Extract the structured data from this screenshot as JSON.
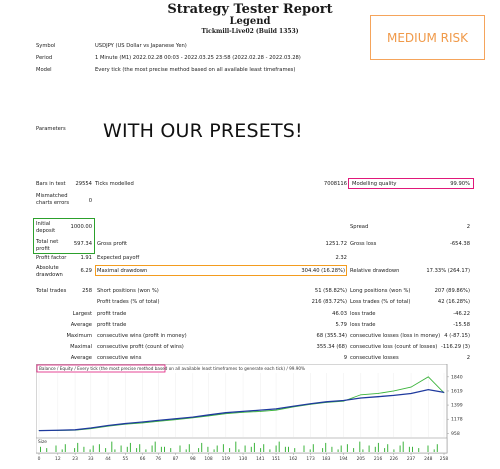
{
  "header": {
    "title": "Strategy Tester Report",
    "subtitle": "Legend",
    "server": "Tickmill-Live02 (Build 1353)"
  },
  "risk_label": "MEDIUM RISK",
  "presets_label": "WITH OUR PRESETS!",
  "info": {
    "symbol_label": "Symbol",
    "symbol": "USDJPY (US Dollar vs Japanese Yen)",
    "period_label": "Period",
    "period": "1 Minute (M1) 2022.02.28 00:03 - 2022.03.25 23:58 (2022.02.28 - 2022.03.28)",
    "model_label": "Model",
    "model": "Every tick (the most precise method based on all available least timeframes)",
    "parameters_label": "Parameters"
  },
  "stats": {
    "bars_label": "Bars in test",
    "bars": "29554",
    "ticks_label": "Ticks modelled",
    "ticks": "7008116",
    "quality_label": "Modelling quality",
    "quality": "99.90%",
    "mismatch_label": "Mismatched charts errors",
    "mismatch": "0",
    "deposit_label": "Initial deposit",
    "deposit": "1000.00",
    "spread_label": "Spread",
    "spread": "2",
    "netprofit_label": "Total net profit",
    "netprofit": "597.34",
    "grossprofit_label": "Gross profit",
    "grossprofit": "1251.72",
    "grossloss_label": "Gross loss",
    "grossloss": "-654.38",
    "pf_label": "Profit factor",
    "pf": "1.91",
    "payoff_label": "Expected payoff",
    "payoff": "2.32",
    "absdd_label": "Absolute drawdown",
    "absdd": "6.29",
    "maxdd_label": "Maximal drawdown",
    "maxdd": "304.40 (16.28%)",
    "reldd_label": "Relative drawdown",
    "reldd": "17.33% (264.17)",
    "trades_label": "Total trades",
    "trades": "258",
    "short_label": "Short positions (won %)",
    "short": "51 (58.82%)",
    "long_label": "Long positions (won %)",
    "long": "207 (89.86%)",
    "ptrades_label": "Profit trades (% of total)",
    "ptrades": "216 (83.72%)",
    "ltrades_label": "Loss trades (% of total)",
    "ltrades": "42 (16.28%)",
    "largest_label": "Largest",
    "average_label": "Average",
    "maximum_label": "Maximum",
    "maximal_label": "Maximal",
    "lp_label": "profit trade",
    "lp": "46.03",
    "ll_label": "loss trade",
    "ll": "-46.22",
    "ap_label": "profit trade",
    "ap": "5.79",
    "al_label": "loss trade",
    "al": "-15.58",
    "mcw_label": "consecutive wins (profit in money)",
    "mcw": "68 (355.34)",
    "mcl_label": "consecutive losses (loss in money)",
    "mcl": "4 (-87.15)",
    "mcp_label": "consecutive profit (count of wins)",
    "mcp": "355.34 (68)",
    "mcll_label": "consecutive loss (count of losses)",
    "mcll": "-116.29 (3)",
    "acw_label": "consecutive wins",
    "acw": "9",
    "acl_label": "consecutive losses",
    "acl": "2"
  },
  "chart_data": {
    "type": "line",
    "title": "Balance / Equity / Every tick (the most precise method based on all available least timeframes to generate each tick) / 99.90%",
    "x_ticks": [
      "0",
      "12",
      "23",
      "33",
      "44",
      "55",
      "66",
      "76",
      "87",
      "98",
      "108",
      "119",
      "130",
      "141",
      "151",
      "162",
      "173",
      "183",
      "194",
      "205",
      "216",
      "226",
      "237",
      "248",
      "258"
    ],
    "y_ticks": [
      "1840",
      "1619",
      "1399",
      "1178",
      "958"
    ],
    "ylim": [
      900,
      1900
    ],
    "xlim": [
      0,
      258
    ],
    "series": [
      {
        "name": "Balance",
        "color": "#1f3a9e",
        "x": [
          0,
          12,
          23,
          33,
          44,
          55,
          66,
          76,
          87,
          98,
          108,
          119,
          130,
          141,
          151,
          162,
          173,
          183,
          194,
          205,
          216,
          226,
          237,
          248,
          258
        ],
        "values": [
          1000,
          1005,
          1012,
          1040,
          1080,
          1110,
          1135,
          1160,
          1185,
          1210,
          1245,
          1280,
          1300,
          1320,
          1340,
          1380,
          1420,
          1450,
          1470,
          1510,
          1530,
          1550,
          1580,
          1640,
          1597
        ]
      },
      {
        "name": "Equity",
        "color": "#3cb43c",
        "x": [
          0,
          12,
          23,
          33,
          44,
          55,
          66,
          76,
          87,
          98,
          108,
          119,
          130,
          141,
          151,
          162,
          173,
          183,
          194,
          205,
          216,
          226,
          237,
          248,
          258
        ],
        "values": [
          1000,
          1002,
          1006,
          1030,
          1070,
          1100,
          1120,
          1145,
          1170,
          1200,
          1230,
          1265,
          1285,
          1300,
          1320,
          1370,
          1410,
          1440,
          1460,
          1560,
          1580,
          1620,
          1680,
          1840,
          1590
        ]
      }
    ],
    "size_label": "Size"
  },
  "colors": {
    "pink": "#e0187a",
    "orange": "#f39c1f",
    "green": "#2ca02c",
    "balance": "#1f3a9e",
    "equity": "#3cb43c"
  }
}
